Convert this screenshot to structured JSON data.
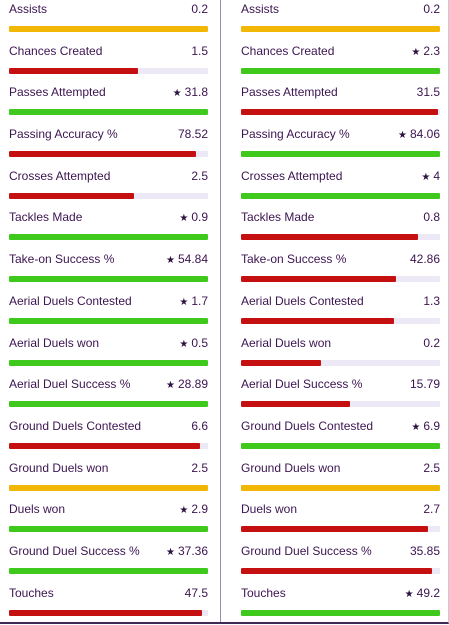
{
  "colors": {
    "green": "#3ec91c",
    "red": "#c41010",
    "yellow": "#f2b705"
  },
  "left": [
    {
      "label": "Assists",
      "value": "0.2",
      "star": false,
      "fill": 1.0,
      "color": "yellow"
    },
    {
      "label": "Chances Created",
      "value": "1.5",
      "star": false,
      "fill": 0.65,
      "color": "red"
    },
    {
      "label": "Passes Attempted",
      "value": "31.8",
      "star": true,
      "fill": 1.0,
      "color": "green"
    },
    {
      "label": "Passing Accuracy %",
      "value": "78.52",
      "star": false,
      "fill": 0.94,
      "color": "red"
    },
    {
      "label": "Crosses Attempted",
      "value": "2.5",
      "star": false,
      "fill": 0.63,
      "color": "red"
    },
    {
      "label": "Tackles Made",
      "value": "0.9",
      "star": true,
      "fill": 1.0,
      "color": "green"
    },
    {
      "label": "Take-on Success %",
      "value": "54.84",
      "star": true,
      "fill": 1.0,
      "color": "green"
    },
    {
      "label": "Aerial Duels Contested",
      "value": "1.7",
      "star": true,
      "fill": 1.0,
      "color": "green"
    },
    {
      "label": "Aerial Duels won",
      "value": "0.5",
      "star": true,
      "fill": 1.0,
      "color": "green"
    },
    {
      "label": "Aerial Duel Success %",
      "value": "28.89",
      "star": true,
      "fill": 1.0,
      "color": "green"
    },
    {
      "label": "Ground Duels Contested",
      "value": "6.6",
      "star": false,
      "fill": 0.96,
      "color": "red"
    },
    {
      "label": "Ground Duels won",
      "value": "2.5",
      "star": false,
      "fill": 1.0,
      "color": "yellow"
    },
    {
      "label": "Duels won",
      "value": "2.9",
      "star": true,
      "fill": 1.0,
      "color": "green"
    },
    {
      "label": "Ground Duel Success %",
      "value": "37.36",
      "star": true,
      "fill": 1.0,
      "color": "green"
    },
    {
      "label": "Touches",
      "value": "47.5",
      "star": false,
      "fill": 0.97,
      "color": "red"
    }
  ],
  "right": [
    {
      "label": "Assists",
      "value": "0.2",
      "star": false,
      "fill": 1.0,
      "color": "yellow"
    },
    {
      "label": "Chances Created",
      "value": "2.3",
      "star": true,
      "fill": 1.0,
      "color": "green"
    },
    {
      "label": "Passes Attempted",
      "value": "31.5",
      "star": false,
      "fill": 0.99,
      "color": "red"
    },
    {
      "label": "Passing Accuracy %",
      "value": "84.06",
      "star": true,
      "fill": 1.0,
      "color": "green"
    },
    {
      "label": "Crosses Attempted",
      "value": "4",
      "star": true,
      "fill": 1.0,
      "color": "green"
    },
    {
      "label": "Tackles Made",
      "value": "0.8",
      "star": false,
      "fill": 0.89,
      "color": "red"
    },
    {
      "label": "Take-on Success %",
      "value": "42.86",
      "star": false,
      "fill": 0.78,
      "color": "red"
    },
    {
      "label": "Aerial Duels Contested",
      "value": "1.3",
      "star": false,
      "fill": 0.77,
      "color": "red"
    },
    {
      "label": "Aerial Duels won",
      "value": "0.2",
      "star": false,
      "fill": 0.4,
      "color": "red"
    },
    {
      "label": "Aerial Duel Success %",
      "value": "15.79",
      "star": false,
      "fill": 0.55,
      "color": "red"
    },
    {
      "label": "Ground Duels Contested",
      "value": "6.9",
      "star": true,
      "fill": 1.0,
      "color": "green"
    },
    {
      "label": "Ground Duels won",
      "value": "2.5",
      "star": false,
      "fill": 1.0,
      "color": "yellow"
    },
    {
      "label": "Duels won",
      "value": "2.7",
      "star": false,
      "fill": 0.94,
      "color": "red"
    },
    {
      "label": "Ground Duel Success %",
      "value": "35.85",
      "star": false,
      "fill": 0.96,
      "color": "red"
    },
    {
      "label": "Touches",
      "value": "49.2",
      "star": true,
      "fill": 1.0,
      "color": "green"
    }
  ]
}
